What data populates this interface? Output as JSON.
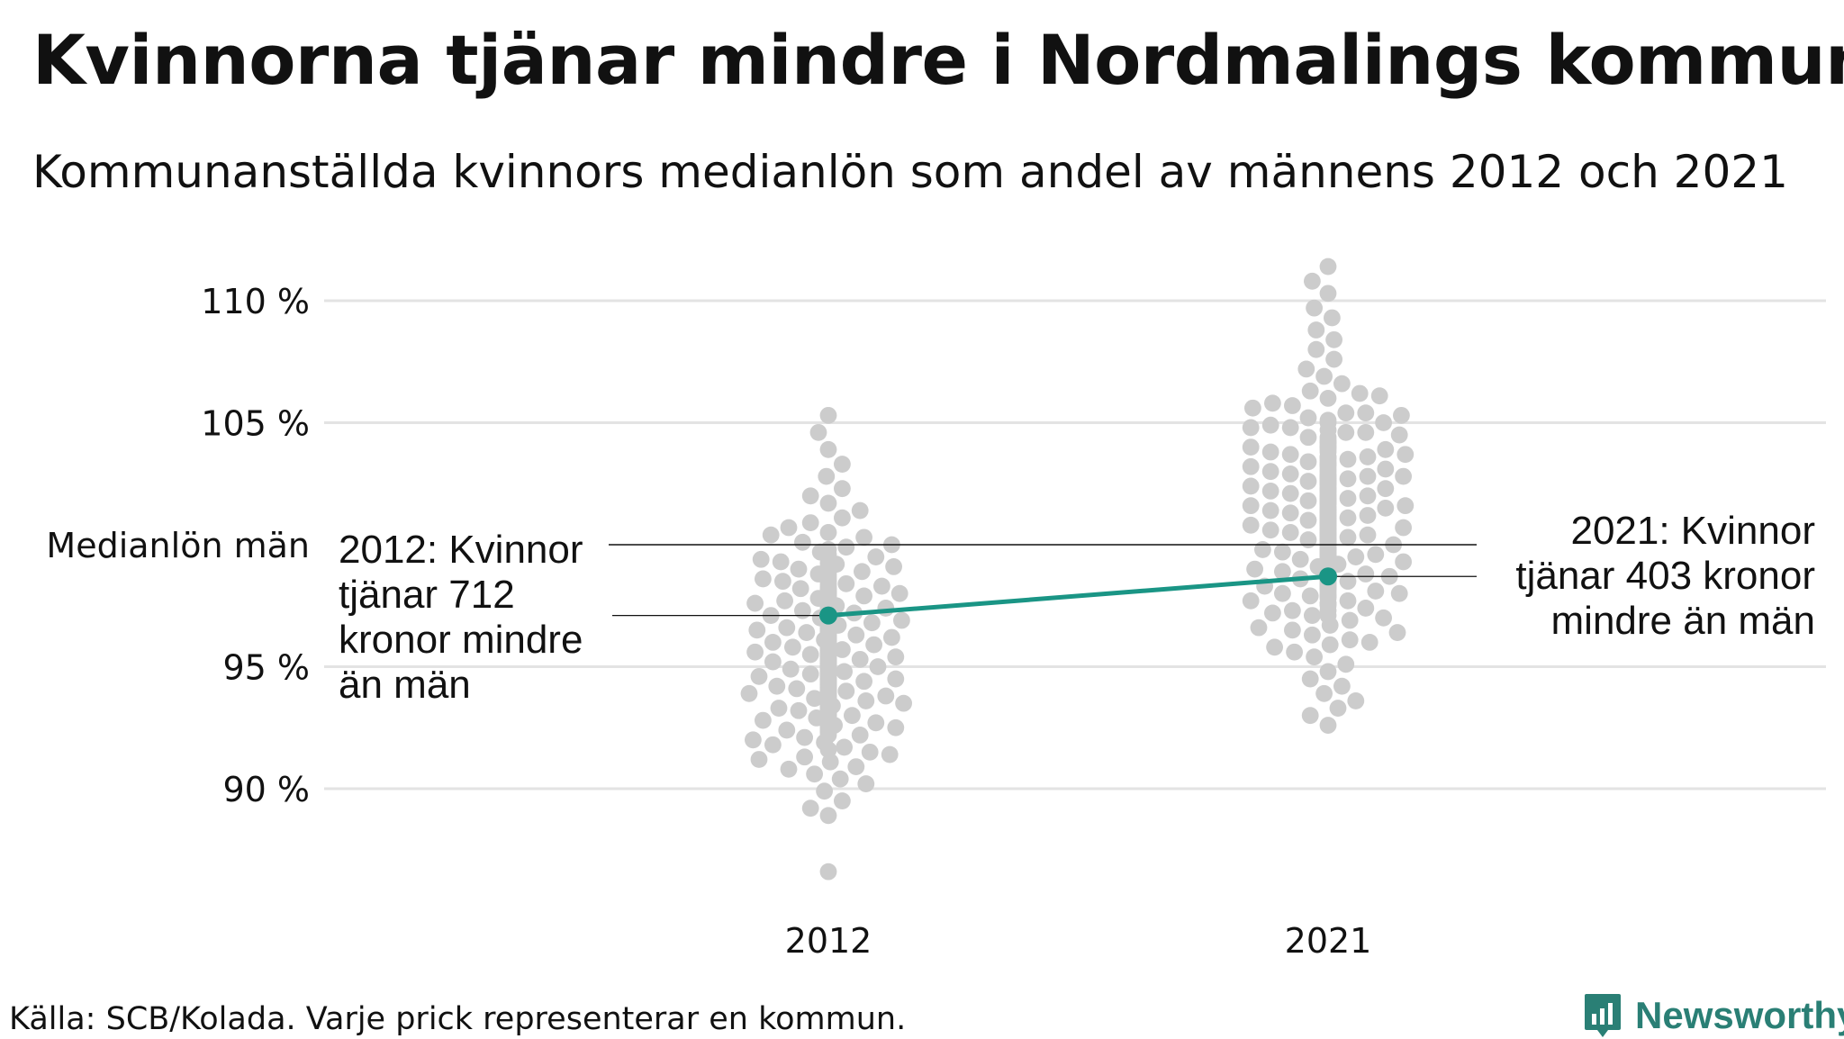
{
  "title": "Kvinnorna tjänar mindre i Nordmalings kommun",
  "subtitle": "Kommunanställda kvinnors medianlön som andel av männens 2012 och 2021",
  "source": "Källa: SCB/Kolada. Varje prick representerar en kommun.",
  "brand": "Newsworthy",
  "colors": {
    "dots": "#cccccc",
    "highlight": "#1a9585",
    "grid": "#e3e3e3",
    "reference": "#111111",
    "brand": "#2a7f75"
  },
  "chart_data": {
    "type": "scatter",
    "categories": [
      "2012",
      "2021"
    ],
    "y_ticks": [
      {
        "value": 90,
        "label": "90 %"
      },
      {
        "value": 95,
        "label": "95 %"
      },
      {
        "value": 105,
        "label": "105 %"
      },
      {
        "value": 110,
        "label": "110 %"
      }
    ],
    "ylim": [
      85,
      112
    ],
    "grid": true,
    "reference_line": {
      "value": 100,
      "label": "Medianlön män"
    },
    "highlight_series": {
      "name": "Nordmaling",
      "values": [
        97.1,
        98.7
      ]
    },
    "annotations": [
      {
        "category": "2012",
        "lines": [
          "2012: Kvinnor",
          "tjänar 712",
          "kronor mindre",
          "än män"
        ]
      },
      {
        "category": "2021",
        "lines": [
          "2021: Kvinnor",
          "tjänar 403 kronor",
          "mindre än män"
        ]
      }
    ],
    "distributions": [
      {
        "category": "2012",
        "values": [
          86.6,
          88.9,
          89.2,
          89.5,
          89.9,
          90.4,
          90.6,
          90.9,
          91.1,
          91.3,
          91.5,
          91.7,
          91.9,
          92.1,
          92.2,
          92.4,
          92.6,
          92.7,
          92.9,
          93.0,
          93.2,
          93.3,
          93.4,
          93.6,
          93.7,
          93.8,
          94.0,
          94.1,
          94.2,
          94.3,
          94.4,
          94.5,
          94.6,
          94.7,
          94.8,
          94.9,
          95.0,
          95.1,
          95.2,
          95.3,
          95.4,
          95.5,
          95.6,
          95.7,
          95.8,
          95.9,
          96.0,
          96.1,
          96.2,
          96.3,
          96.4,
          96.5,
          96.6,
          96.7,
          96.8,
          96.9,
          97.0,
          97.1,
          97.2,
          97.3,
          97.4,
          97.5,
          97.6,
          97.7,
          97.8,
          97.9,
          98.0,
          98.1,
          98.2,
          98.3,
          98.4,
          98.5,
          98.6,
          98.8,
          98.9,
          99.0,
          99.2,
          99.3,
          99.5,
          99.7,
          99.9,
          100.1,
          100.3,
          100.5,
          100.7,
          100.9,
          101.1,
          101.4,
          101.7,
          102.0,
          102.3,
          102.8,
          103.3,
          103.9,
          104.6,
          105.3,
          94.9,
          95.2,
          95.6,
          96.0,
          96.4,
          96.8,
          97.2,
          97.6,
          95.3,
          94.7,
          96.2,
          97.0,
          93.9,
          95.8,
          96.6,
          97.4,
          98.2,
          94.4,
          95.1,
          95.9,
          96.5,
          97.8,
          93.5,
          94.1,
          94.6,
          95.4,
          96.1,
          96.9,
          97.5,
          98.4,
          92.8,
          93.6,
          94.3,
          95.0,
          95.7,
          96.3,
          97.1,
          98.0,
          99.1,
          93.1,
          94.0,
          94.8,
          95.5,
          96.2,
          96.7,
          97.3,
          98.6,
          92.5,
          93.3,
          94.2,
          95.0,
          95.8,
          96.4,
          97.7,
          98.9,
          91.8,
          93.0,
          94.5,
          95.6,
          96.0,
          97.2,
          98.1,
          99.4,
          92.3,
          93.8,
          95.2,
          96.5,
          97.9,
          99.0,
          91.4,
          93.4,
          94.7,
          96.3,
          97.6,
          98.7,
          100.0,
          92.0,
          93.9,
          95.5,
          96.9,
          98.3,
          99.6,
          90.8,
          92.9,
          94.6,
          96.1,
          97.4,
          99.2,
          91.6,
          93.7,
          95.9,
          97.0,
          98.5,
          100.4,
          92.6,
          94.9,
          96.6,
          98.0,
          99.8,
          91.2,
          93.5,
          95.3,
          97.3,
          99.3,
          92.2,
          94.3,
          96.8,
          98.8,
          93.2,
          95.7,
          97.7,
          90.2,
          92.7,
          95.0,
          97.9,
          94.0,
          96.2,
          98.2,
          93.1,
          95.4,
          94.8,
          97.0,
          96.0,
          95.1,
          94.4,
          93.6,
          96.4,
          95.6,
          94.1,
          92.4,
          95.9,
          93.0,
          94.6,
          97.5,
          96.7,
          92.7,
          95.2,
          94.2,
          93.4,
          96.3,
          97.1,
          95.8,
          94.5,
          93.8,
          96.9,
          95.5,
          94.0,
          93.3,
          96.0,
          95.0,
          94.7,
          97.2,
          92.5,
          93.9,
          94.9,
          96.6,
          95.3,
          94.3,
          92.9,
          96.8,
          95.7,
          93.5,
          94.8,
          97.8,
          96.1,
          92.6,
          95.1,
          93.7,
          97.5,
          96.2,
          94.1,
          95.4,
          92.4,
          96.5,
          97.3,
          93.2,
          95.6,
          94.5,
          96.9,
          92.8,
          95.9,
          93.6,
          94.2,
          97.4,
          96.3,
          95.2,
          94.0,
          93.1,
          97.6,
          96.7,
          95.8,
          94.6,
          93.3,
          96.0,
          95.5,
          94.4,
          97.0,
          96.4,
          95.0,
          93.8
        ]
      },
      {
        "category": "2021",
        "values": [
          92.6,
          93.0,
          93.3,
          93.6,
          93.9,
          94.2,
          94.5,
          94.8,
          95.1,
          95.4,
          95.6,
          95.9,
          96.1,
          96.3,
          96.5,
          96.7,
          96.9,
          97.1,
          97.3,
          97.4,
          97.6,
          97.7,
          97.9,
          98.0,
          98.1,
          98.3,
          98.4,
          98.5,
          98.6,
          98.7,
          98.8,
          98.9,
          99.0,
          99.1,
          99.2,
          99.3,
          99.4,
          99.5,
          99.6,
          99.7,
          99.8,
          99.9,
          100.0,
          100.1,
          100.2,
          100.3,
          100.4,
          100.5,
          100.6,
          100.7,
          100.8,
          100.9,
          101.0,
          101.1,
          101.2,
          101.3,
          101.4,
          101.5,
          101.6,
          101.7,
          101.8,
          101.9,
          102.0,
          102.1,
          102.2,
          102.3,
          102.4,
          102.5,
          102.6,
          102.7,
          102.8,
          102.9,
          103.0,
          103.1,
          103.2,
          103.3,
          103.4,
          103.5,
          103.6,
          103.7,
          103.8,
          103.9,
          104.0,
          104.2,
          104.4,
          104.6,
          104.8,
          105.0,
          105.2,
          105.4,
          105.7,
          106.0,
          106.3,
          106.6,
          106.9,
          107.2,
          107.6,
          108.0,
          108.4,
          108.8,
          109.3,
          109.7,
          110.3,
          110.8,
          111.4,
          100.4,
          100.2,
          100.0,
          100.3,
          100.5,
          100.1,
          102.8,
          102.6,
          102.9,
          102.7,
          102.8,
          101.0,
          101.3,
          101.6,
          101.9,
          102.2,
          102.5,
          99.8,
          99.5,
          99.2,
          98.9,
          98.6,
          98.3,
          98.0,
          97.7,
          103.1,
          103.4,
          103.7,
          104.0,
          104.3,
          104.6,
          105.0,
          105.4,
          100.8,
          101.1,
          101.4,
          101.7,
          102.0,
          102.3,
          99.9,
          99.6,
          99.3,
          99.0,
          98.7,
          98.4,
          103.6,
          103.9,
          104.2,
          104.5,
          104.9,
          105.3,
          105.8,
          100.6,
          100.9,
          101.2,
          101.5,
          101.8,
          102.1,
          102.4,
          99.7,
          99.4,
          99.1,
          98.8,
          98.5,
          98.2,
          97.9,
          103.0,
          103.3,
          103.6,
          104.1,
          104.7,
          105.6,
          106.2,
          100.2,
          100.7,
          101.3,
          101.9,
          102.6,
          99.6,
          99.0,
          98.4,
          97.8,
          97.2,
          103.8,
          104.4,
          105.1,
          106.1,
          100.5,
          101.1,
          101.8,
          102.7,
          99.3,
          98.6,
          97.9,
          97.0,
          103.5,
          104.8,
          100.9,
          102.2,
          99.1,
          98.1,
          96.6,
          104.0,
          101.6,
          100.0,
          98.9,
          103.2,
          102.0,
          99.8,
          97.5,
          101.4,
          100.4,
          99.2,
          98.3,
          96.0,
          100.6,
          102.5,
          99.5,
          98.7,
          97.3,
          101.0,
          99.9,
          98.2,
          100.8,
          99.4,
          96.4,
          102.8,
          97.6,
          101.7,
          100.1,
          99.7,
          98.0,
          100.3,
          101.5,
          102.3,
          99.0,
          100.7,
          98.8,
          97.1,
          95.8,
          101.2,
          100.2,
          99.6
        ]
      }
    ]
  }
}
